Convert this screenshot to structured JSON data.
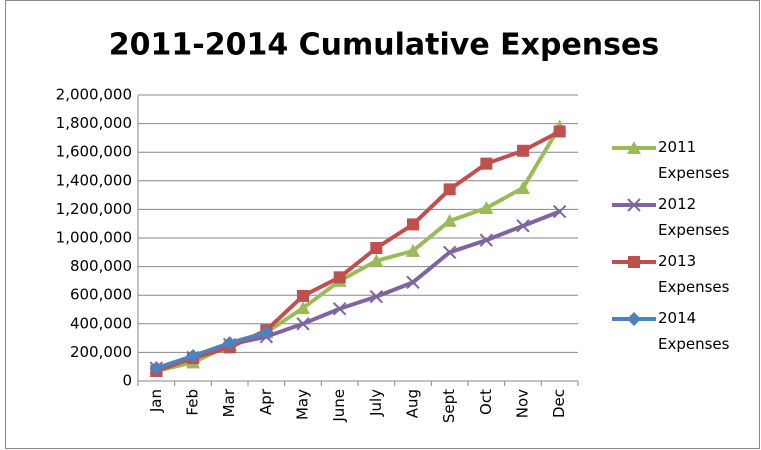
{
  "chart_data": {
    "type": "line",
    "title": "2011-2014 Cumulative Expenses",
    "categories": [
      "Jan",
      "Feb",
      "Mar",
      "Apr",
      "May",
      "June",
      "July",
      "Aug",
      "Sept",
      "Oct",
      "Nov",
      "Dec"
    ],
    "series": [
      {
        "name": "2011 Expenses",
        "color": "#9bbb59",
        "marker": "triangle",
        "values": [
          70000,
          130000,
          250000,
          340000,
          510000,
          700000,
          840000,
          910000,
          1120000,
          1210000,
          1350000,
          1780000
        ]
      },
      {
        "name": "2012 Expenses",
        "color": "#8064a2",
        "marker": "x",
        "values": [
          90000,
          165000,
          255000,
          310000,
          400000,
          505000,
          590000,
          690000,
          900000,
          985000,
          1085000,
          1185000
        ]
      },
      {
        "name": "2013 Expenses",
        "color": "#c0504d",
        "marker": "square",
        "values": [
          70000,
          160000,
          235000,
          355000,
          595000,
          725000,
          930000,
          1095000,
          1340000,
          1520000,
          1610000,
          1745000
        ]
      },
      {
        "name": "2014 Expenses",
        "color": "#4f81bd",
        "marker": "diamond",
        "values": [
          90000,
          175000,
          265000,
          340000,
          null,
          null,
          null,
          null,
          null,
          null,
          null,
          null
        ]
      }
    ],
    "ylim": [
      0,
      2000000
    ],
    "yticks": [
      0,
      {
        "value": 200000,
        "label": "200,000"
      },
      {
        "value": 400000,
        "label": "400,000"
      },
      {
        "value": 600000,
        "label": "600,000"
      },
      {
        "value": 800000,
        "label": "800,000"
      },
      {
        "value": 1000000,
        "label": "1,000,000"
      },
      {
        "value": 1200000,
        "label": "1,200,000"
      },
      {
        "value": 1400000,
        "label": "1,400,000"
      },
      {
        "value": 1600000,
        "label": "1,600,000"
      },
      {
        "value": 1800000,
        "label": "1,800,000"
      },
      {
        "value": 2000000,
        "label": "2,000,000"
      }
    ],
    "grid": true,
    "legend": "right"
  }
}
